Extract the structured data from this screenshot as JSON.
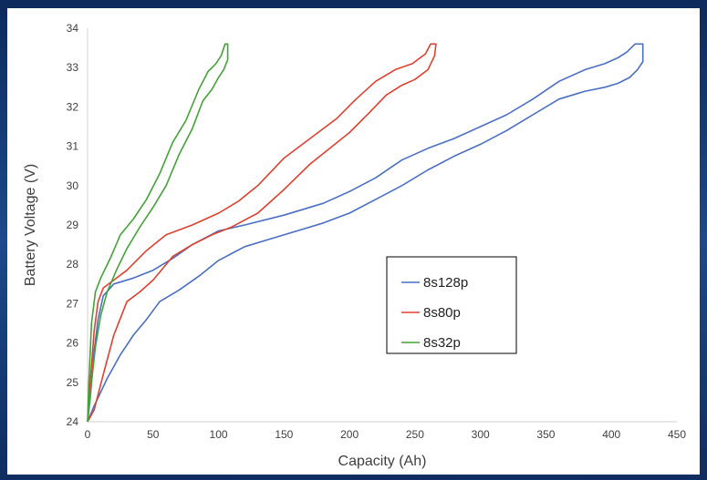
{
  "chart_data": {
    "type": "line",
    "title": "",
    "xlabel": "Capacity (Ah)",
    "ylabel": "Battery Voltage (V)",
    "xlim": [
      0,
      450
    ],
    "ylim": [
      24,
      34
    ],
    "xticks": [
      0,
      50,
      100,
      150,
      200,
      250,
      300,
      350,
      400,
      450
    ],
    "yticks": [
      24,
      25,
      26,
      27,
      28,
      29,
      30,
      31,
      32,
      33,
      34
    ],
    "grid": false,
    "legend_position": "center-right",
    "series": [
      {
        "name": "8s128p",
        "color": "#4a6fc4",
        "points": [
          [
            0,
            24.0
          ],
          [
            2,
            24.6
          ],
          [
            5,
            25.8
          ],
          [
            8,
            26.6
          ],
          [
            12,
            27.2
          ],
          [
            20,
            27.5
          ],
          [
            35,
            27.65
          ],
          [
            50,
            27.85
          ],
          [
            65,
            28.15
          ],
          [
            80,
            28.5
          ],
          [
            100,
            28.85
          ],
          [
            120,
            29.0
          ],
          [
            150,
            29.25
          ],
          [
            180,
            29.55
          ],
          [
            200,
            29.85
          ],
          [
            220,
            30.2
          ],
          [
            240,
            30.65
          ],
          [
            260,
            30.95
          ],
          [
            280,
            31.2
          ],
          [
            300,
            31.5
          ],
          [
            320,
            31.8
          ],
          [
            340,
            32.2
          ],
          [
            360,
            32.65
          ],
          [
            380,
            32.95
          ],
          [
            395,
            33.1
          ],
          [
            405,
            33.25
          ],
          [
            412,
            33.4
          ],
          [
            418,
            33.6
          ],
          [
            424,
            33.6
          ],
          [
            424,
            33.15
          ],
          [
            420,
            32.95
          ],
          [
            414,
            32.75
          ],
          [
            405,
            32.6
          ],
          [
            395,
            32.5
          ],
          [
            380,
            32.4
          ],
          [
            360,
            32.2
          ],
          [
            340,
            31.8
          ],
          [
            320,
            31.4
          ],
          [
            300,
            31.05
          ],
          [
            280,
            30.75
          ],
          [
            260,
            30.4
          ],
          [
            240,
            30.0
          ],
          [
            220,
            29.65
          ],
          [
            200,
            29.3
          ],
          [
            180,
            29.05
          ],
          [
            160,
            28.85
          ],
          [
            140,
            28.65
          ],
          [
            120,
            28.45
          ],
          [
            100,
            28.1
          ],
          [
            85,
            27.7
          ],
          [
            70,
            27.35
          ],
          [
            55,
            27.05
          ],
          [
            45,
            26.6
          ],
          [
            35,
            26.2
          ],
          [
            25,
            25.7
          ],
          [
            15,
            25.1
          ],
          [
            5,
            24.4
          ],
          [
            0,
            24.0
          ]
        ]
      },
      {
        "name": "8s80p",
        "color": "#e0412f",
        "points": [
          [
            0,
            24.0
          ],
          [
            2,
            25.0
          ],
          [
            5,
            26.3
          ],
          [
            8,
            27.05
          ],
          [
            12,
            27.4
          ],
          [
            20,
            27.6
          ],
          [
            30,
            27.85
          ],
          [
            45,
            28.35
          ],
          [
            60,
            28.75
          ],
          [
            80,
            29.0
          ],
          [
            100,
            29.3
          ],
          [
            115,
            29.6
          ],
          [
            130,
            30.0
          ],
          [
            150,
            30.7
          ],
          [
            170,
            31.2
          ],
          [
            190,
            31.7
          ],
          [
            205,
            32.2
          ],
          [
            220,
            32.65
          ],
          [
            235,
            32.95
          ],
          [
            248,
            33.1
          ],
          [
            258,
            33.35
          ],
          [
            262,
            33.6
          ],
          [
            266,
            33.6
          ],
          [
            265,
            33.3
          ],
          [
            260,
            32.95
          ],
          [
            250,
            32.7
          ],
          [
            240,
            32.55
          ],
          [
            228,
            32.3
          ],
          [
            215,
            31.85
          ],
          [
            200,
            31.35
          ],
          [
            185,
            30.95
          ],
          [
            170,
            30.55
          ],
          [
            150,
            29.9
          ],
          [
            130,
            29.3
          ],
          [
            110,
            28.95
          ],
          [
            95,
            28.75
          ],
          [
            80,
            28.5
          ],
          [
            65,
            28.2
          ],
          [
            50,
            27.6
          ],
          [
            40,
            27.3
          ],
          [
            30,
            27.05
          ],
          [
            20,
            26.2
          ],
          [
            12,
            25.2
          ],
          [
            5,
            24.3
          ],
          [
            0,
            24.0
          ]
        ]
      },
      {
        "name": "8s32p",
        "color": "#43a337",
        "points": [
          [
            0,
            24.0
          ],
          [
            1,
            25.0
          ],
          [
            3,
            26.5
          ],
          [
            6,
            27.3
          ],
          [
            10,
            27.65
          ],
          [
            18,
            28.2
          ],
          [
            25,
            28.75
          ],
          [
            35,
            29.15
          ],
          [
            45,
            29.65
          ],
          [
            55,
            30.3
          ],
          [
            65,
            31.1
          ],
          [
            75,
            31.65
          ],
          [
            85,
            32.45
          ],
          [
            92,
            32.9
          ],
          [
            98,
            33.1
          ],
          [
            102,
            33.3
          ],
          [
            105,
            33.6
          ],
          [
            107,
            33.6
          ],
          [
            107,
            33.2
          ],
          [
            104,
            32.95
          ],
          [
            100,
            32.75
          ],
          [
            95,
            32.45
          ],
          [
            88,
            32.15
          ],
          [
            80,
            31.45
          ],
          [
            70,
            30.8
          ],
          [
            60,
            30.0
          ],
          [
            50,
            29.45
          ],
          [
            40,
            28.95
          ],
          [
            30,
            28.4
          ],
          [
            22,
            27.85
          ],
          [
            15,
            27.3
          ],
          [
            10,
            26.7
          ],
          [
            6,
            25.9
          ],
          [
            3,
            25.0
          ],
          [
            0,
            24.0
          ]
        ]
      }
    ]
  }
}
